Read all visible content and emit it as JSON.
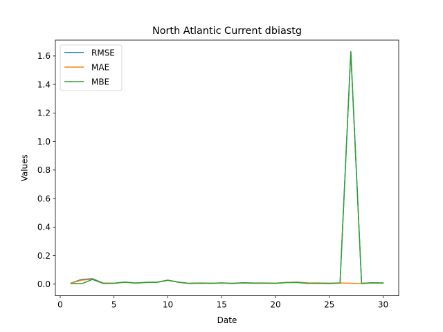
{
  "chart_data": {
    "type": "line",
    "title": "North Atlantic Current dbiastg",
    "xlabel": "Date",
    "ylabel": "Values",
    "xlim": [
      -0.45,
      31.45
    ],
    "ylim": [
      -0.0815,
      1.711
    ],
    "xticks": [
      0,
      5,
      10,
      15,
      20,
      25,
      30
    ],
    "xtick_labels": [
      "0",
      "5",
      "10",
      "15",
      "20",
      "25",
      "30"
    ],
    "yticks": [
      0.0,
      0.2,
      0.4,
      0.6,
      0.8,
      1.0,
      1.2,
      1.4,
      1.6
    ],
    "ytick_labels": [
      "0.0",
      "0.2",
      "0.4",
      "0.6",
      "0.8",
      "1.0",
      "1.2",
      "1.4",
      "1.6"
    ],
    "grid": false,
    "legend_position": "upper left",
    "x": [
      1,
      2,
      3,
      4,
      5,
      6,
      7,
      8,
      9,
      10,
      11,
      12,
      13,
      14,
      15,
      16,
      17,
      18,
      19,
      20,
      21,
      22,
      23,
      24,
      25,
      26,
      27,
      28,
      29,
      30
    ],
    "series": [
      {
        "name": "RMSE",
        "color": "#1f77b4",
        "values": [
          0.008,
          0.033,
          0.038,
          0.007,
          0.007,
          0.015,
          0.008,
          0.013,
          0.014,
          0.028,
          0.014,
          0.006,
          0.008,
          0.007,
          0.009,
          0.006,
          0.01,
          0.008,
          0.008,
          0.007,
          0.012,
          0.014,
          0.009,
          0.008,
          0.006,
          0.009,
          1.63,
          0.006,
          0.01,
          0.009
        ]
      },
      {
        "name": "MAE",
        "color": "#ff7f0e",
        "values": [
          0.007,
          0.028,
          0.034,
          0.006,
          0.006,
          0.014,
          0.007,
          0.012,
          0.013,
          0.027,
          0.013,
          0.005,
          0.007,
          0.006,
          0.008,
          0.005,
          0.009,
          0.007,
          0.007,
          0.006,
          0.011,
          0.013,
          0.008,
          0.007,
          0.005,
          0.008,
          0.006,
          0.005,
          0.009,
          0.008
        ]
      },
      {
        "name": "MBE",
        "color": "#2ca02c",
        "values": [
          0.005,
          0.003,
          0.033,
          0.004,
          0.005,
          0.014,
          0.007,
          0.012,
          0.013,
          0.027,
          0.013,
          0.004,
          0.006,
          0.005,
          0.008,
          0.004,
          0.009,
          0.006,
          0.006,
          0.005,
          0.011,
          0.011,
          0.005,
          0.005,
          0.003,
          0.007,
          1.63,
          0.004,
          0.009,
          0.007
        ]
      }
    ]
  }
}
